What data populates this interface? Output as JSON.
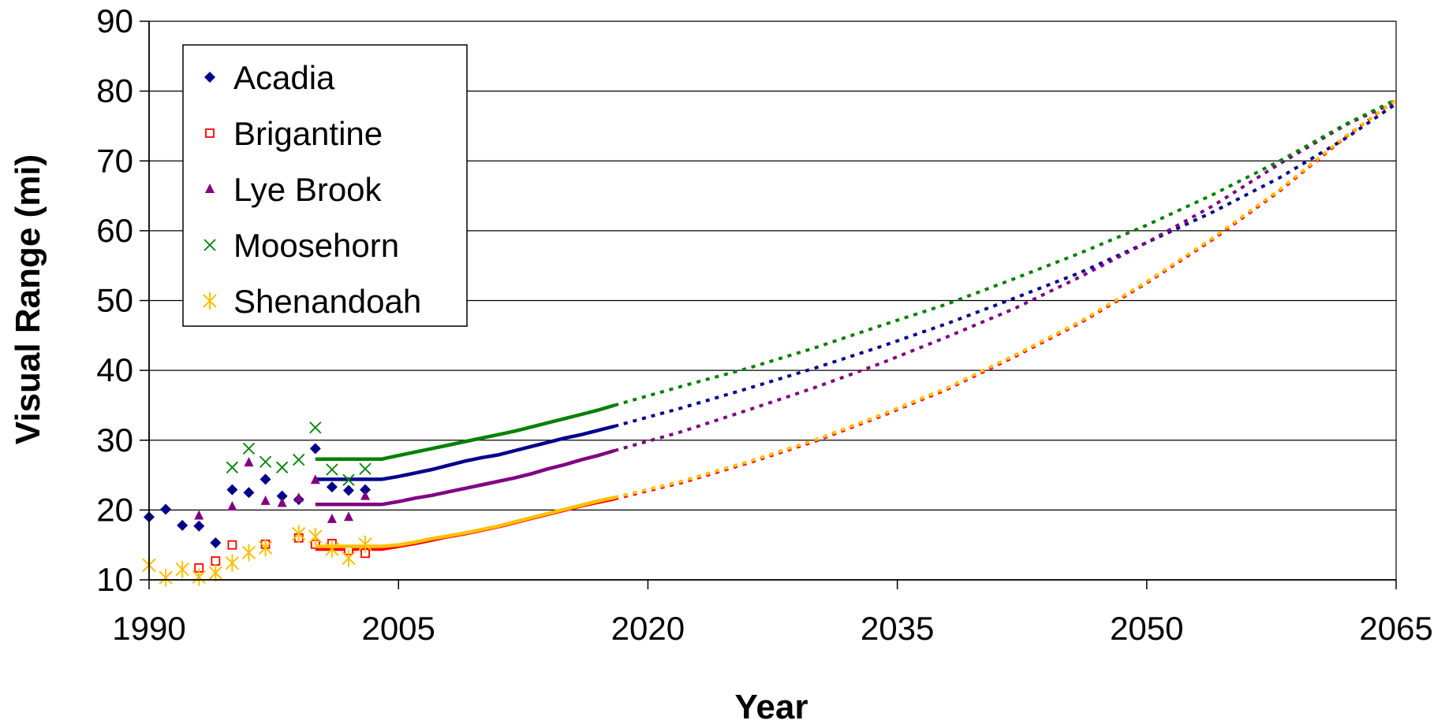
{
  "chart_data": {
    "type": "scatter",
    "title": "",
    "xlabel": "Year",
    "ylabel": "Visual Range (mi)",
    "xlim": [
      1990,
      2065
    ],
    "ylim": [
      10,
      90
    ],
    "x_ticks": [
      "1990",
      "2005",
      "2020",
      "2035",
      "2050",
      "2065"
    ],
    "y_ticks": [
      "10",
      "20",
      "30",
      "40",
      "50",
      "60",
      "70",
      "80",
      "90"
    ],
    "grid": "horizontal",
    "legend_position": "top-left",
    "series": [
      {
        "name": "Acadia",
        "color": "#00008b",
        "marker": "diamond",
        "points": [
          [
            1990,
            19.0
          ],
          [
            1991,
            20.1
          ],
          [
            1992,
            17.8
          ],
          [
            1993,
            17.7
          ],
          [
            1994,
            15.3
          ],
          [
            1995,
            22.9
          ],
          [
            1996,
            22.5
          ],
          [
            1997,
            24.4
          ],
          [
            1998,
            22.0
          ],
          [
            1999,
            21.5
          ],
          [
            2000,
            28.8
          ],
          [
            2001,
            23.3
          ],
          [
            2002,
            22.8
          ],
          [
            2003,
            22.9
          ]
        ],
        "trend": [
          [
            2000,
            24.4
          ],
          [
            2004,
            24.4
          ],
          [
            2005,
            24.8
          ],
          [
            2006,
            25.3
          ],
          [
            2007,
            25.8
          ],
          [
            2008,
            26.4
          ],
          [
            2009,
            27.0
          ],
          [
            2010,
            27.5
          ],
          [
            2011,
            27.9
          ],
          [
            2012,
            28.5
          ],
          [
            2013,
            29.1
          ],
          [
            2014,
            29.7
          ],
          [
            2015,
            30.3
          ],
          [
            2016,
            30.8
          ],
          [
            2017,
            31.4
          ],
          [
            2018,
            32.0
          ]
        ],
        "projection": [
          [
            2018,
            32.0
          ],
          [
            2022,
            34.6
          ],
          [
            2026,
            37.4
          ],
          [
            2030,
            40.3
          ],
          [
            2034,
            43.4
          ],
          [
            2038,
            46.7
          ],
          [
            2042,
            50.3
          ],
          [
            2046,
            54.0
          ],
          [
            2050,
            58.3
          ],
          [
            2054,
            62.7
          ],
          [
            2058,
            67.6
          ],
          [
            2062,
            73.3
          ],
          [
            2065,
            78.2
          ]
        ]
      },
      {
        "name": "Brigantine",
        "color": "#ff0000",
        "marker": "open-square",
        "points": [
          [
            1993,
            11.7
          ],
          [
            1994,
            12.7
          ],
          [
            1995,
            15.0
          ],
          [
            1997,
            15.1
          ],
          [
            1999,
            16.0
          ],
          [
            2000,
            15.1
          ],
          [
            2001,
            15.2
          ],
          [
            2002,
            14.2
          ],
          [
            2003,
            13.8
          ]
        ],
        "trend": [
          [
            2000,
            14.4
          ],
          [
            2004,
            14.4
          ],
          [
            2005,
            14.8
          ],
          [
            2006,
            15.2
          ],
          [
            2007,
            15.7
          ],
          [
            2008,
            16.2
          ],
          [
            2009,
            16.6
          ],
          [
            2010,
            17.1
          ],
          [
            2011,
            17.6
          ],
          [
            2012,
            18.2
          ],
          [
            2013,
            18.8
          ],
          [
            2014,
            19.4
          ],
          [
            2015,
            20.0
          ],
          [
            2016,
            20.6
          ],
          [
            2017,
            21.1
          ],
          [
            2018,
            21.6
          ]
        ],
        "projection": [
          [
            2018,
            21.6
          ],
          [
            2022,
            23.9
          ],
          [
            2026,
            26.7
          ],
          [
            2030,
            29.8
          ],
          [
            2034,
            33.4
          ],
          [
            2038,
            37.3
          ],
          [
            2042,
            41.9
          ],
          [
            2046,
            46.8
          ],
          [
            2050,
            52.5
          ],
          [
            2054,
            58.8
          ],
          [
            2058,
            65.7
          ],
          [
            2062,
            73.5
          ],
          [
            2065,
            78.8
          ]
        ]
      },
      {
        "name": "Lye Brook",
        "color": "#800080",
        "marker": "triangle",
        "points": [
          [
            1993,
            19.2
          ],
          [
            1995,
            20.5
          ],
          [
            1996,
            26.8
          ],
          [
            1997,
            21.3
          ],
          [
            1998,
            21.0
          ],
          [
            1999,
            21.7
          ],
          [
            2000,
            24.3
          ],
          [
            2001,
            18.7
          ],
          [
            2002,
            19.0
          ],
          [
            2003,
            22.0
          ]
        ],
        "trend": [
          [
            2000,
            20.8
          ],
          [
            2004,
            20.8
          ],
          [
            2005,
            21.2
          ],
          [
            2006,
            21.7
          ],
          [
            2007,
            22.1
          ],
          [
            2008,
            22.6
          ],
          [
            2009,
            23.1
          ],
          [
            2010,
            23.6
          ],
          [
            2011,
            24.1
          ],
          [
            2012,
            24.6
          ],
          [
            2013,
            25.2
          ],
          [
            2014,
            25.9
          ],
          [
            2015,
            26.5
          ],
          [
            2016,
            27.2
          ],
          [
            2017,
            27.8
          ],
          [
            2018,
            28.5
          ]
        ],
        "projection": [
          [
            2018,
            28.5
          ],
          [
            2022,
            31.2
          ],
          [
            2026,
            34.3
          ],
          [
            2030,
            37.5
          ],
          [
            2034,
            41.0
          ],
          [
            2038,
            44.8
          ],
          [
            2042,
            48.8
          ],
          [
            2046,
            53.4
          ],
          [
            2050,
            58.3
          ],
          [
            2054,
            63.6
          ],
          [
            2058,
            69.6
          ],
          [
            2062,
            75.2
          ],
          [
            2065,
            78.5
          ]
        ]
      },
      {
        "name": "Moosehorn",
        "color": "#008000",
        "marker": "x",
        "points": [
          [
            1995,
            26.1
          ],
          [
            1996,
            28.8
          ],
          [
            1997,
            26.9
          ],
          [
            1998,
            26.1
          ],
          [
            1999,
            27.2
          ],
          [
            2000,
            31.8
          ],
          [
            2001,
            25.8
          ],
          [
            2002,
            24.3
          ],
          [
            2003,
            25.9
          ]
        ],
        "trend": [
          [
            2000,
            27.3
          ],
          [
            2004,
            27.3
          ],
          [
            2005,
            27.8
          ],
          [
            2006,
            28.3
          ],
          [
            2007,
            28.8
          ],
          [
            2008,
            29.3
          ],
          [
            2009,
            29.8
          ],
          [
            2010,
            30.3
          ],
          [
            2011,
            30.8
          ],
          [
            2012,
            31.3
          ],
          [
            2013,
            31.9
          ],
          [
            2014,
            32.5
          ],
          [
            2015,
            33.1
          ],
          [
            2016,
            33.7
          ],
          [
            2017,
            34.3
          ],
          [
            2018,
            35.0
          ]
        ],
        "projection": [
          [
            2018,
            35.0
          ],
          [
            2022,
            37.7
          ],
          [
            2026,
            40.3
          ],
          [
            2030,
            43.2
          ],
          [
            2034,
            46.4
          ],
          [
            2038,
            49.5
          ],
          [
            2042,
            53.1
          ],
          [
            2046,
            56.8
          ],
          [
            2050,
            60.8
          ],
          [
            2054,
            65.2
          ],
          [
            2058,
            70.0
          ],
          [
            2062,
            75.3
          ],
          [
            2065,
            78.8
          ]
        ]
      },
      {
        "name": "Shenandoah",
        "color": "#ffc000",
        "marker": "asterisk",
        "points": [
          [
            1990,
            12.1
          ],
          [
            1991,
            10.3
          ],
          [
            1992,
            11.5
          ],
          [
            1993,
            10.4
          ],
          [
            1994,
            11.0
          ],
          [
            1995,
            12.4
          ],
          [
            1996,
            13.9
          ],
          [
            1997,
            14.6
          ],
          [
            1999,
            16.6
          ],
          [
            2000,
            16.2
          ],
          [
            2001,
            14.4
          ],
          [
            2002,
            13.1
          ],
          [
            2003,
            15.1
          ]
        ],
        "trend": [
          [
            2000,
            14.8
          ],
          [
            2004,
            14.8
          ],
          [
            2005,
            15.0
          ],
          [
            2006,
            15.4
          ],
          [
            2007,
            15.9
          ],
          [
            2008,
            16.3
          ],
          [
            2009,
            16.7
          ],
          [
            2010,
            17.2
          ],
          [
            2011,
            17.7
          ],
          [
            2012,
            18.3
          ],
          [
            2013,
            18.9
          ],
          [
            2014,
            19.5
          ],
          [
            2015,
            20.1
          ],
          [
            2016,
            20.7
          ],
          [
            2017,
            21.3
          ],
          [
            2018,
            21.8
          ]
        ],
        "projection": [
          [
            2018,
            21.8
          ],
          [
            2022,
            24.1
          ],
          [
            2026,
            26.9
          ],
          [
            2030,
            30.0
          ],
          [
            2034,
            33.6
          ],
          [
            2038,
            37.5
          ],
          [
            2042,
            42.1
          ],
          [
            2046,
            47.0
          ],
          [
            2050,
            52.7
          ],
          [
            2054,
            59.0
          ],
          [
            2058,
            65.9
          ],
          [
            2062,
            73.6
          ],
          [
            2065,
            78.7
          ]
        ]
      }
    ]
  }
}
